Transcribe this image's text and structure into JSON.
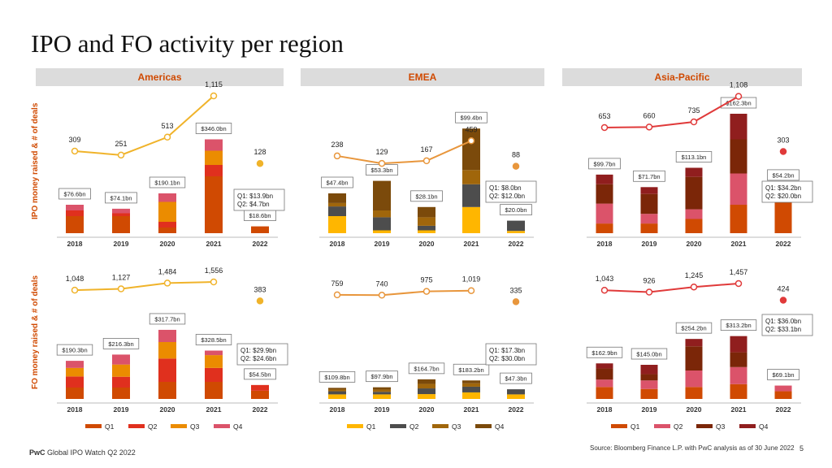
{
  "title": "IPO and FO activity per region",
  "regions": [
    "Americas",
    "EMEA",
    "Asia-Pacific"
  ],
  "y_labels": {
    "ipo": "IPO money raised & # of deals",
    "fo": "FO money raised & # of deals"
  },
  "footer": {
    "brand": "PwC",
    "report": "Global IPO Watch Q2 2022",
    "source": "Source: Bloomberg Finance L.P. with PwC analysis as of 30 June 2022",
    "page": "5"
  },
  "colors": {
    "americas": [
      "#d04a02",
      "#e0301e",
      "#eb8c00",
      "#db536a"
    ],
    "emea": [
      "#ffb600",
      "#4d4d4d",
      "#a0660b",
      "#7b4a0b"
    ],
    "apac": [
      "#d04a02",
      "#db536a",
      "#7b2608",
      "#901e1e"
    ],
    "line_americas": "#f0b32a",
    "line_emea": "#e8963c",
    "line_apac": "#e03a3a"
  },
  "chart_data": [
    {
      "id": "ipo-americas",
      "type": "bar",
      "title": "Americas IPO",
      "categories": [
        "2018",
        "2019",
        "2020",
        "2021",
        "2022"
      ],
      "series_names": [
        "Q1",
        "Q2",
        "Q3",
        "Q4"
      ],
      "segments": [
        [
          0.3,
          0.1,
          0,
          0.1
        ],
        [
          0.3,
          0.05,
          0,
          0.08
        ],
        [
          0.1,
          0.1,
          0.35,
          0.15
        ],
        [
          1.0,
          0.2,
          0.25,
          0.2
        ],
        [
          0.12,
          0,
          0,
          0
        ]
      ],
      "bar_labels": [
        "$76.6bn",
        "$74.1bn",
        "$190.1bn",
        "$346.0bn",
        "$18.6bn"
      ],
      "deal_counts": [
        "309",
        "251",
        "513",
        "1,115",
        "128"
      ],
      "deal_values": [
        309,
        251,
        513,
        1115,
        128
      ],
      "split_note": [
        "Q1: $13.9bn",
        "Q2: $4.7bn"
      ]
    },
    {
      "id": "ipo-emea",
      "type": "bar",
      "title": "EMEA IPO",
      "categories": [
        "2018",
        "2019",
        "2020",
        "2021",
        "2022"
      ],
      "series_names": [
        "Q1",
        "Q2",
        "Q3",
        "Q4"
      ],
      "segments": [
        [
          0.3,
          0.17,
          0.06,
          0.17
        ],
        [
          0.05,
          0.23,
          0.12,
          0.52
        ],
        [
          0.05,
          0.08,
          0.15,
          0.18
        ],
        [
          0.46,
          0.4,
          0.25,
          0.73
        ],
        [
          0.04,
          0.18,
          0,
          0
        ]
      ],
      "bar_labels": [
        "$47.4bn",
        "$53.3bn",
        "$28.1bn",
        "$99.4bn",
        "$20.0bn"
      ],
      "deal_counts": [
        "238",
        "129",
        "167",
        "459",
        "88"
      ],
      "deal_values": [
        238,
        129,
        167,
        459,
        88
      ],
      "split_note": [
        "Q1: $8.0bn",
        "Q2: $12.0bn"
      ]
    },
    {
      "id": "ipo-apac",
      "type": "bar",
      "title": "Asia-Pacific IPO",
      "categories": [
        "2018",
        "2019",
        "2020",
        "2021",
        "2022"
      ],
      "series_names": [
        "Q1",
        "Q2",
        "Q3",
        "Q4"
      ],
      "segments": [
        [
          0.17,
          0.35,
          0.34,
          0.17
        ],
        [
          0.17,
          0.17,
          0.35,
          0.12
        ],
        [
          0.25,
          0.17,
          0.57,
          0.16
        ],
        [
          0.5,
          0.55,
          0.6,
          0.45
        ],
        [
          0.75,
          0.08,
          0,
          0
        ]
      ],
      "bar_labels": [
        "$99.7bn",
        "$71.7bn",
        "$113.1bn",
        "$162.3bn",
        "$54.2bn"
      ],
      "deal_counts": [
        "653",
        "660",
        "735",
        "1,108",
        "303"
      ],
      "deal_values": [
        653,
        660,
        735,
        1108,
        303
      ],
      "split_note": [
        "Q1: $34.2bn",
        "Q2: $20.0bn"
      ]
    },
    {
      "id": "fo-americas",
      "type": "bar",
      "title": "Americas FO",
      "categories": [
        "2018",
        "2019",
        "2020",
        "2021",
        "2022"
      ],
      "series_names": [
        "Q1",
        "Q2",
        "Q3",
        "Q4"
      ],
      "segments": [
        [
          0.4,
          0.39,
          0.3,
          0.25
        ],
        [
          0.4,
          0.38,
          0.43,
          0.35
        ],
        [
          0.6,
          0.82,
          0.58,
          0.43
        ],
        [
          0.6,
          0.49,
          0.45,
          0.16
        ],
        [
          0.29,
          0.2,
          0,
          0
        ]
      ],
      "bar_labels": [
        "$190.3bn",
        "$216.3bn",
        "$317.7bn",
        "$328.5bn",
        "$54.5bn"
      ],
      "deal_counts": [
        "1,048",
        "1,127",
        "1,484",
        "1,556",
        "383"
      ],
      "deal_values": [
        1048,
        1127,
        1484,
        1556,
        383
      ],
      "split_note": [
        "Q1: $29.9bn",
        "Q2: $24.6bn"
      ]
    },
    {
      "id": "fo-emea",
      "type": "bar",
      "title": "EMEA FO",
      "categories": [
        "2018",
        "2019",
        "2020",
        "2021",
        "2022"
      ],
      "series_names": [
        "Q1",
        "Q2",
        "Q3",
        "Q4"
      ],
      "segments": [
        [
          0.16,
          0.11,
          0.06,
          0.06
        ],
        [
          0.16,
          0.09,
          0.08,
          0.08
        ],
        [
          0.17,
          0.2,
          0.16,
          0.16
        ],
        [
          0.23,
          0.2,
          0.12,
          0.1
        ],
        [
          0.16,
          0.18,
          0,
          0
        ]
      ],
      "bar_labels": [
        "$109.8bn",
        "$97.9bn",
        "$164.7bn",
        "$183.2bn",
        "$47.3bn"
      ],
      "deal_counts": [
        "759",
        "740",
        "975",
        "1,019",
        "335"
      ],
      "deal_values": [
        759,
        740,
        975,
        1019,
        335
      ],
      "split_note": [
        "Q1: $17.3bn",
        "Q2: $30.0bn"
      ]
    },
    {
      "id": "fo-apac",
      "type": "bar",
      "title": "Asia-Pacific FO",
      "categories": [
        "2018",
        "2019",
        "2020",
        "2021",
        "2022"
      ],
      "series_names": [
        "Q1",
        "Q2",
        "Q3",
        "Q4"
      ],
      "segments": [
        [
          0.42,
          0.26,
          0.39,
          0.18
        ],
        [
          0.35,
          0.3,
          0.22,
          0.33
        ],
        [
          0.42,
          0.58,
          0.85,
          0.26
        ],
        [
          0.52,
          0.6,
          0.52,
          0.57
        ],
        [
          0.27,
          0.2,
          0,
          0
        ]
      ],
      "bar_labels": [
        "$162.9bn",
        "$145.0bn",
        "$254.2bn",
        "$313.2bn",
        "$69.1bn"
      ],
      "deal_counts": [
        "1,043",
        "926",
        "1,245",
        "1,457",
        "424"
      ],
      "deal_values": [
        1043,
        926,
        1245,
        1457,
        424
      ],
      "split_note": [
        "Q1: $36.0bn",
        "Q2: $33.1bn"
      ]
    }
  ]
}
